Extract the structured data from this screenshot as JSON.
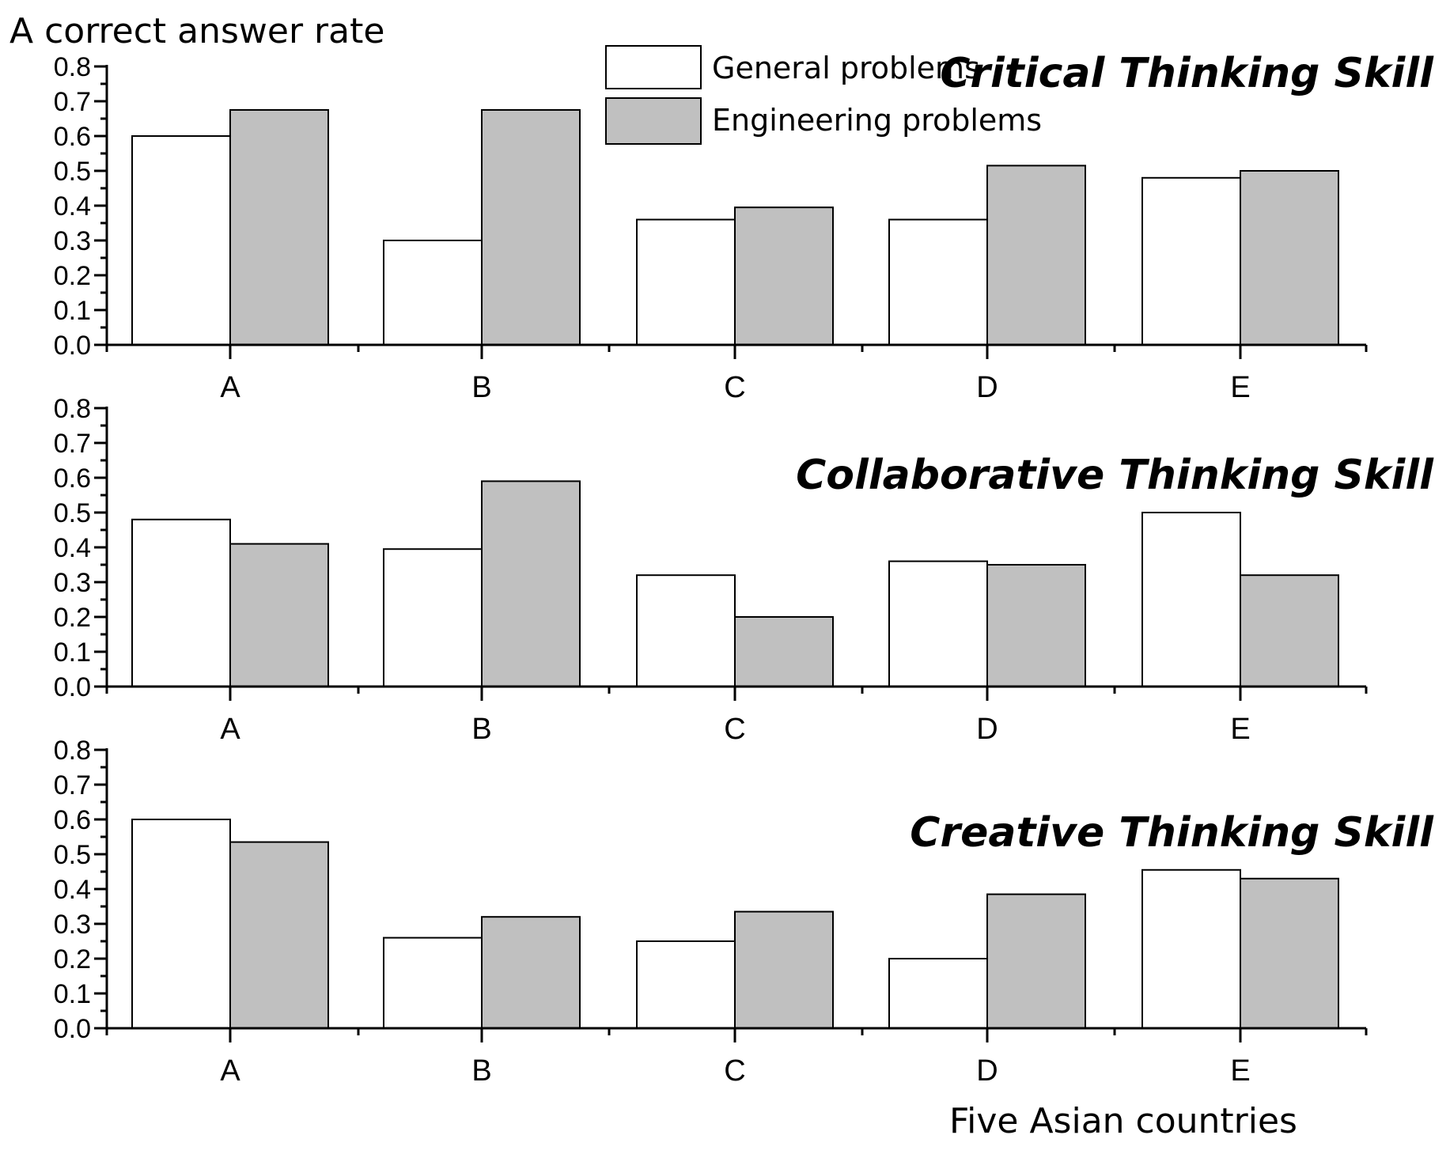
{
  "chart_data": [
    {
      "type": "bar",
      "title": "Critical Thinking Skill",
      "ylabel": "A correct answer rate",
      "xlabel": "",
      "ylim": [
        0,
        0.8
      ],
      "yticks": [
        "0.0",
        "0.1",
        "0.2",
        "0.3",
        "0.4",
        "0.5",
        "0.6",
        "0.7",
        "0.8"
      ],
      "categories": [
        "A",
        "B",
        "C",
        "D",
        "E"
      ],
      "series": [
        {
          "name": "General problems",
          "color": "#ffffff",
          "values": [
            0.6,
            0.3,
            0.36,
            0.36,
            0.48
          ]
        },
        {
          "name": "Engineering problems",
          "color": "#c0c0c0",
          "values": [
            0.675,
            0.675,
            0.395,
            0.515,
            0.5
          ]
        }
      ],
      "legend": "top-center",
      "grid": false
    },
    {
      "type": "bar",
      "title": "Collaborative Thinking Skill",
      "ylabel": "",
      "xlabel": "",
      "ylim": [
        0,
        0.8
      ],
      "yticks": [
        "0.0",
        "0.1",
        "0.2",
        "0.3",
        "0.4",
        "0.5",
        "0.6",
        "0.7",
        "0.8"
      ],
      "categories": [
        "A",
        "B",
        "C",
        "D",
        "E"
      ],
      "series": [
        {
          "name": "General problems",
          "color": "#ffffff",
          "values": [
            0.48,
            0.395,
            0.32,
            0.36,
            0.5
          ]
        },
        {
          "name": "Engineering problems",
          "color": "#c0c0c0",
          "values": [
            0.41,
            0.59,
            0.2,
            0.35,
            0.32
          ]
        }
      ],
      "grid": false
    },
    {
      "type": "bar",
      "title": "Creative Thinking Skill",
      "ylabel": "",
      "xlabel": "Five Asian countries",
      "ylim": [
        0,
        0.8
      ],
      "yticks": [
        "0.0",
        "0.1",
        "0.2",
        "0.3",
        "0.4",
        "0.5",
        "0.6",
        "0.7",
        "0.8"
      ],
      "categories": [
        "A",
        "B",
        "C",
        "D",
        "E"
      ],
      "series": [
        {
          "name": "General problems",
          "color": "#ffffff",
          "values": [
            0.6,
            0.26,
            0.25,
            0.2,
            0.455
          ]
        },
        {
          "name": "Engineering problems",
          "color": "#c0c0c0",
          "values": [
            0.535,
            0.32,
            0.335,
            0.385,
            0.43
          ]
        }
      ],
      "grid": false
    }
  ],
  "legend": {
    "entries": [
      "General problems",
      "Engineering problems"
    ]
  }
}
